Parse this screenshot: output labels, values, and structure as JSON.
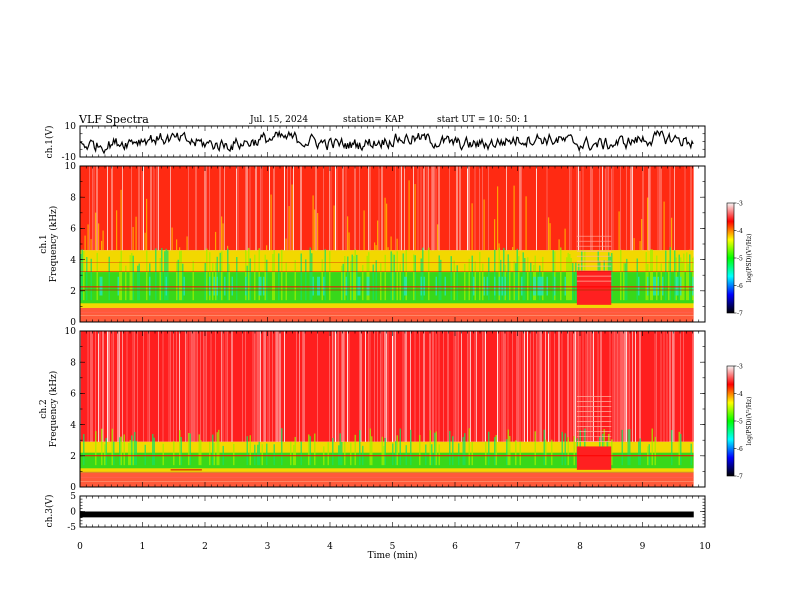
{
  "header": {
    "title": "VLF Spectra",
    "date": "Jul. 15, 2024",
    "station": "station= KAP",
    "start_ut": "start UT =  10: 50: 1"
  },
  "chart_data": [
    {
      "type": "line",
      "panel": "ch1-waveform",
      "ylabel": "ch.1(V)",
      "yticks": [
        "10",
        "-10"
      ],
      "ylim": [
        -10,
        10
      ],
      "xlim": [
        0,
        10
      ],
      "color": "#000000"
    },
    {
      "type": "heatmap",
      "panel": "ch1-spectrogram",
      "ylabel": "ch.1\nFrequency (kHz)",
      "ylabel_lines": [
        "ch.1",
        "Frequency (kHz)"
      ],
      "ylim": [
        0,
        10
      ],
      "yticks": [
        0,
        2,
        4,
        6,
        8,
        10
      ],
      "xlim": [
        0,
        10
      ],
      "data_end_min": 9.82,
      "colorbar": {
        "label": "log(PSD)(V²/Hz)",
        "range": [
          -7,
          -3
        ],
        "ticks": [
          "-3",
          "-4",
          "-5",
          "-6",
          "-7"
        ],
        "colors": [
          "#f7f7f7",
          "#ff0000",
          "#ffff00",
          "#00ff00",
          "#00ffff",
          "#0000ff",
          "#000000"
        ]
      }
    },
    {
      "type": "heatmap",
      "panel": "ch2-spectrogram",
      "ylabel": "ch.2\nFrequency (kHz)",
      "ylabel_lines": [
        "ch.2",
        "Frequency (kHz)"
      ],
      "ylim": [
        0,
        10
      ],
      "yticks": [
        0,
        2,
        4,
        6,
        8,
        10
      ],
      "xlim": [
        0,
        10
      ],
      "data_end_min": 9.82,
      "colorbar": {
        "label": "log(PSD)(V²/Hz)",
        "range": [
          -7,
          -3
        ],
        "ticks": [
          "-3",
          "-4",
          "-5",
          "-6",
          "-7"
        ],
        "colors": [
          "#f7f7f7",
          "#ff0000",
          "#ffff00",
          "#00ff00",
          "#00ffff",
          "#0000ff",
          "#000000"
        ]
      }
    },
    {
      "type": "line",
      "panel": "ch3-waveform",
      "ylabel": "ch.3(V)",
      "yticks": [
        "5",
        "0",
        "-5"
      ],
      "ylim": [
        -5,
        5
      ],
      "xlim": [
        0,
        10
      ],
      "trace_level": [
        -0.6,
        0.0
      ],
      "color": "#000000"
    }
  ],
  "xaxis": {
    "label": "Time (min)",
    "ticks": [
      "0",
      "1",
      "2",
      "3",
      "4",
      "5",
      "6",
      "7",
      "8",
      "9",
      "10"
    ],
    "range": [
      0,
      10
    ]
  }
}
